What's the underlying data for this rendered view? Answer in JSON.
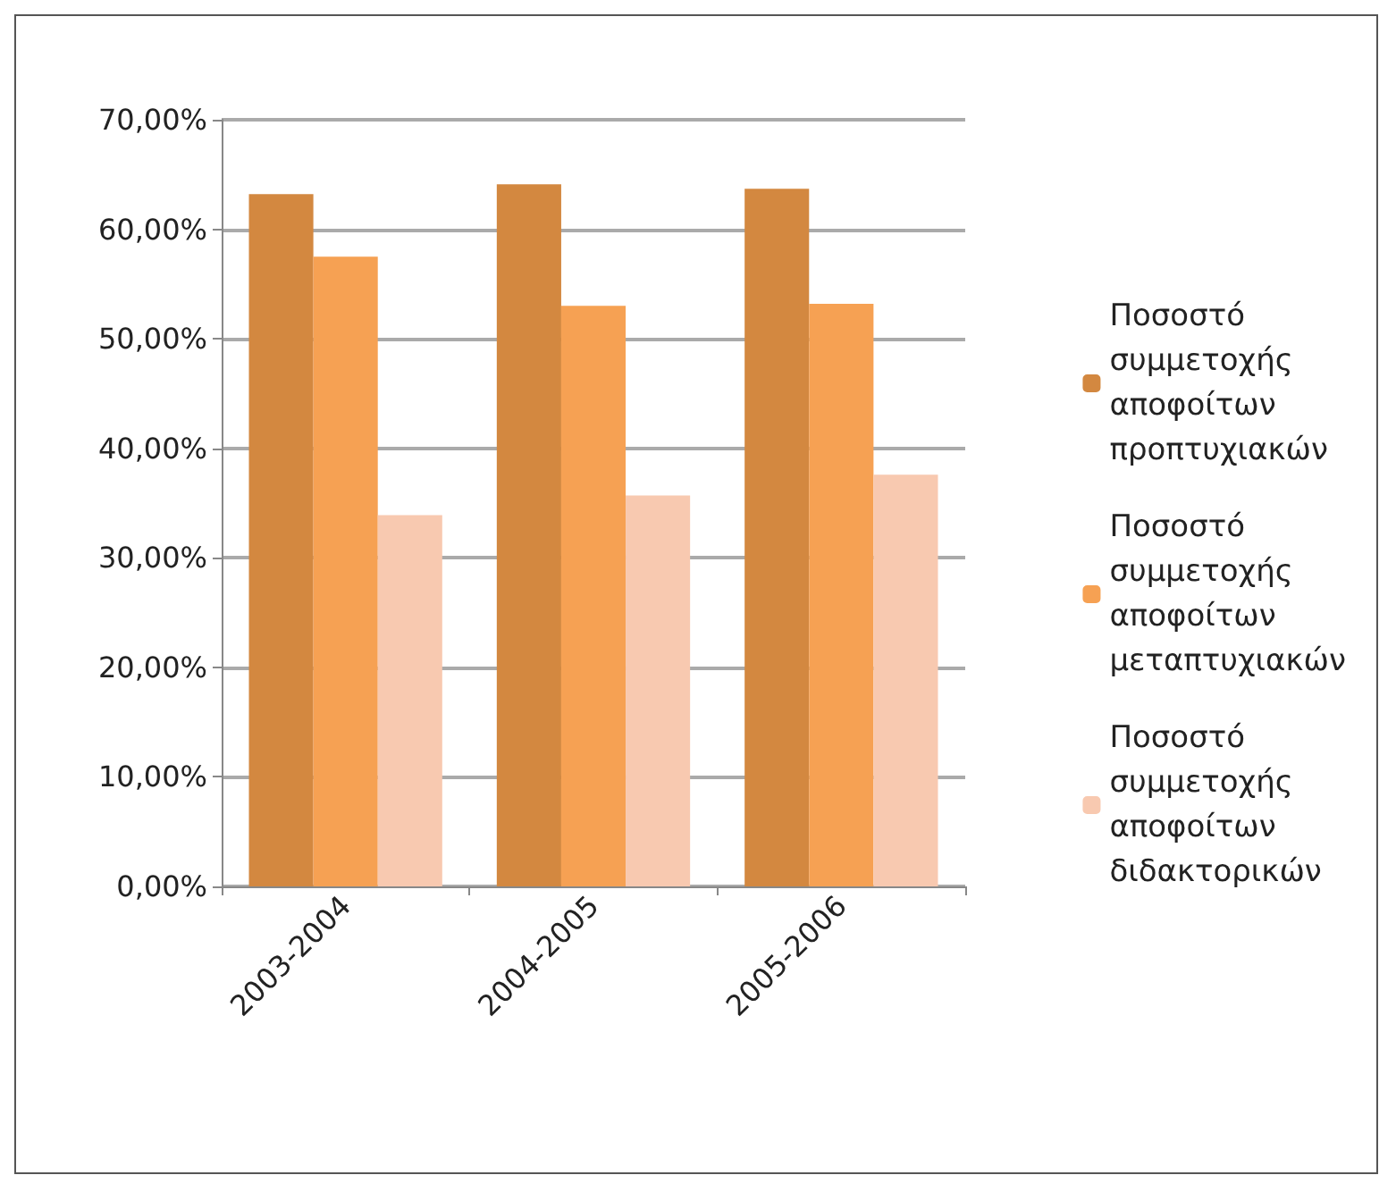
{
  "chart_data": {
    "type": "bar",
    "categories": [
      "2003-2004",
      "2004-2005",
      "2005-2006"
    ],
    "series": [
      {
        "name": "Ποσοστό συμμετοχής αποφοίτων προπτυχιακών",
        "color": "#d38840",
        "values": [
          63.2,
          64.1,
          63.7
        ]
      },
      {
        "name": "Ποσοστό συμμετοχής αποφοίτων μεταπτυχιακών",
        "color": "#f6a153",
        "values": [
          57.5,
          53.0,
          53.2
        ]
      },
      {
        "name": "Ποσοστό συμμετοχής αποφοίτων διδακτορικών",
        "color": "#f8c9b0",
        "values": [
          33.9,
          35.7,
          37.6
        ]
      }
    ],
    "ylim": [
      0,
      70
    ],
    "yticks": [
      {
        "value": 0,
        "label": "0,00%"
      },
      {
        "value": 10,
        "label": "10,00%"
      },
      {
        "value": 20,
        "label": "20,00%"
      },
      {
        "value": 30,
        "label": "30,00%"
      },
      {
        "value": 40,
        "label": "40,00%"
      },
      {
        "value": 50,
        "label": "50,00%"
      },
      {
        "value": 60,
        "label": "60,00%"
      },
      {
        "value": 70,
        "label": "70,00%"
      }
    ],
    "grid": "y",
    "legend": "right"
  }
}
